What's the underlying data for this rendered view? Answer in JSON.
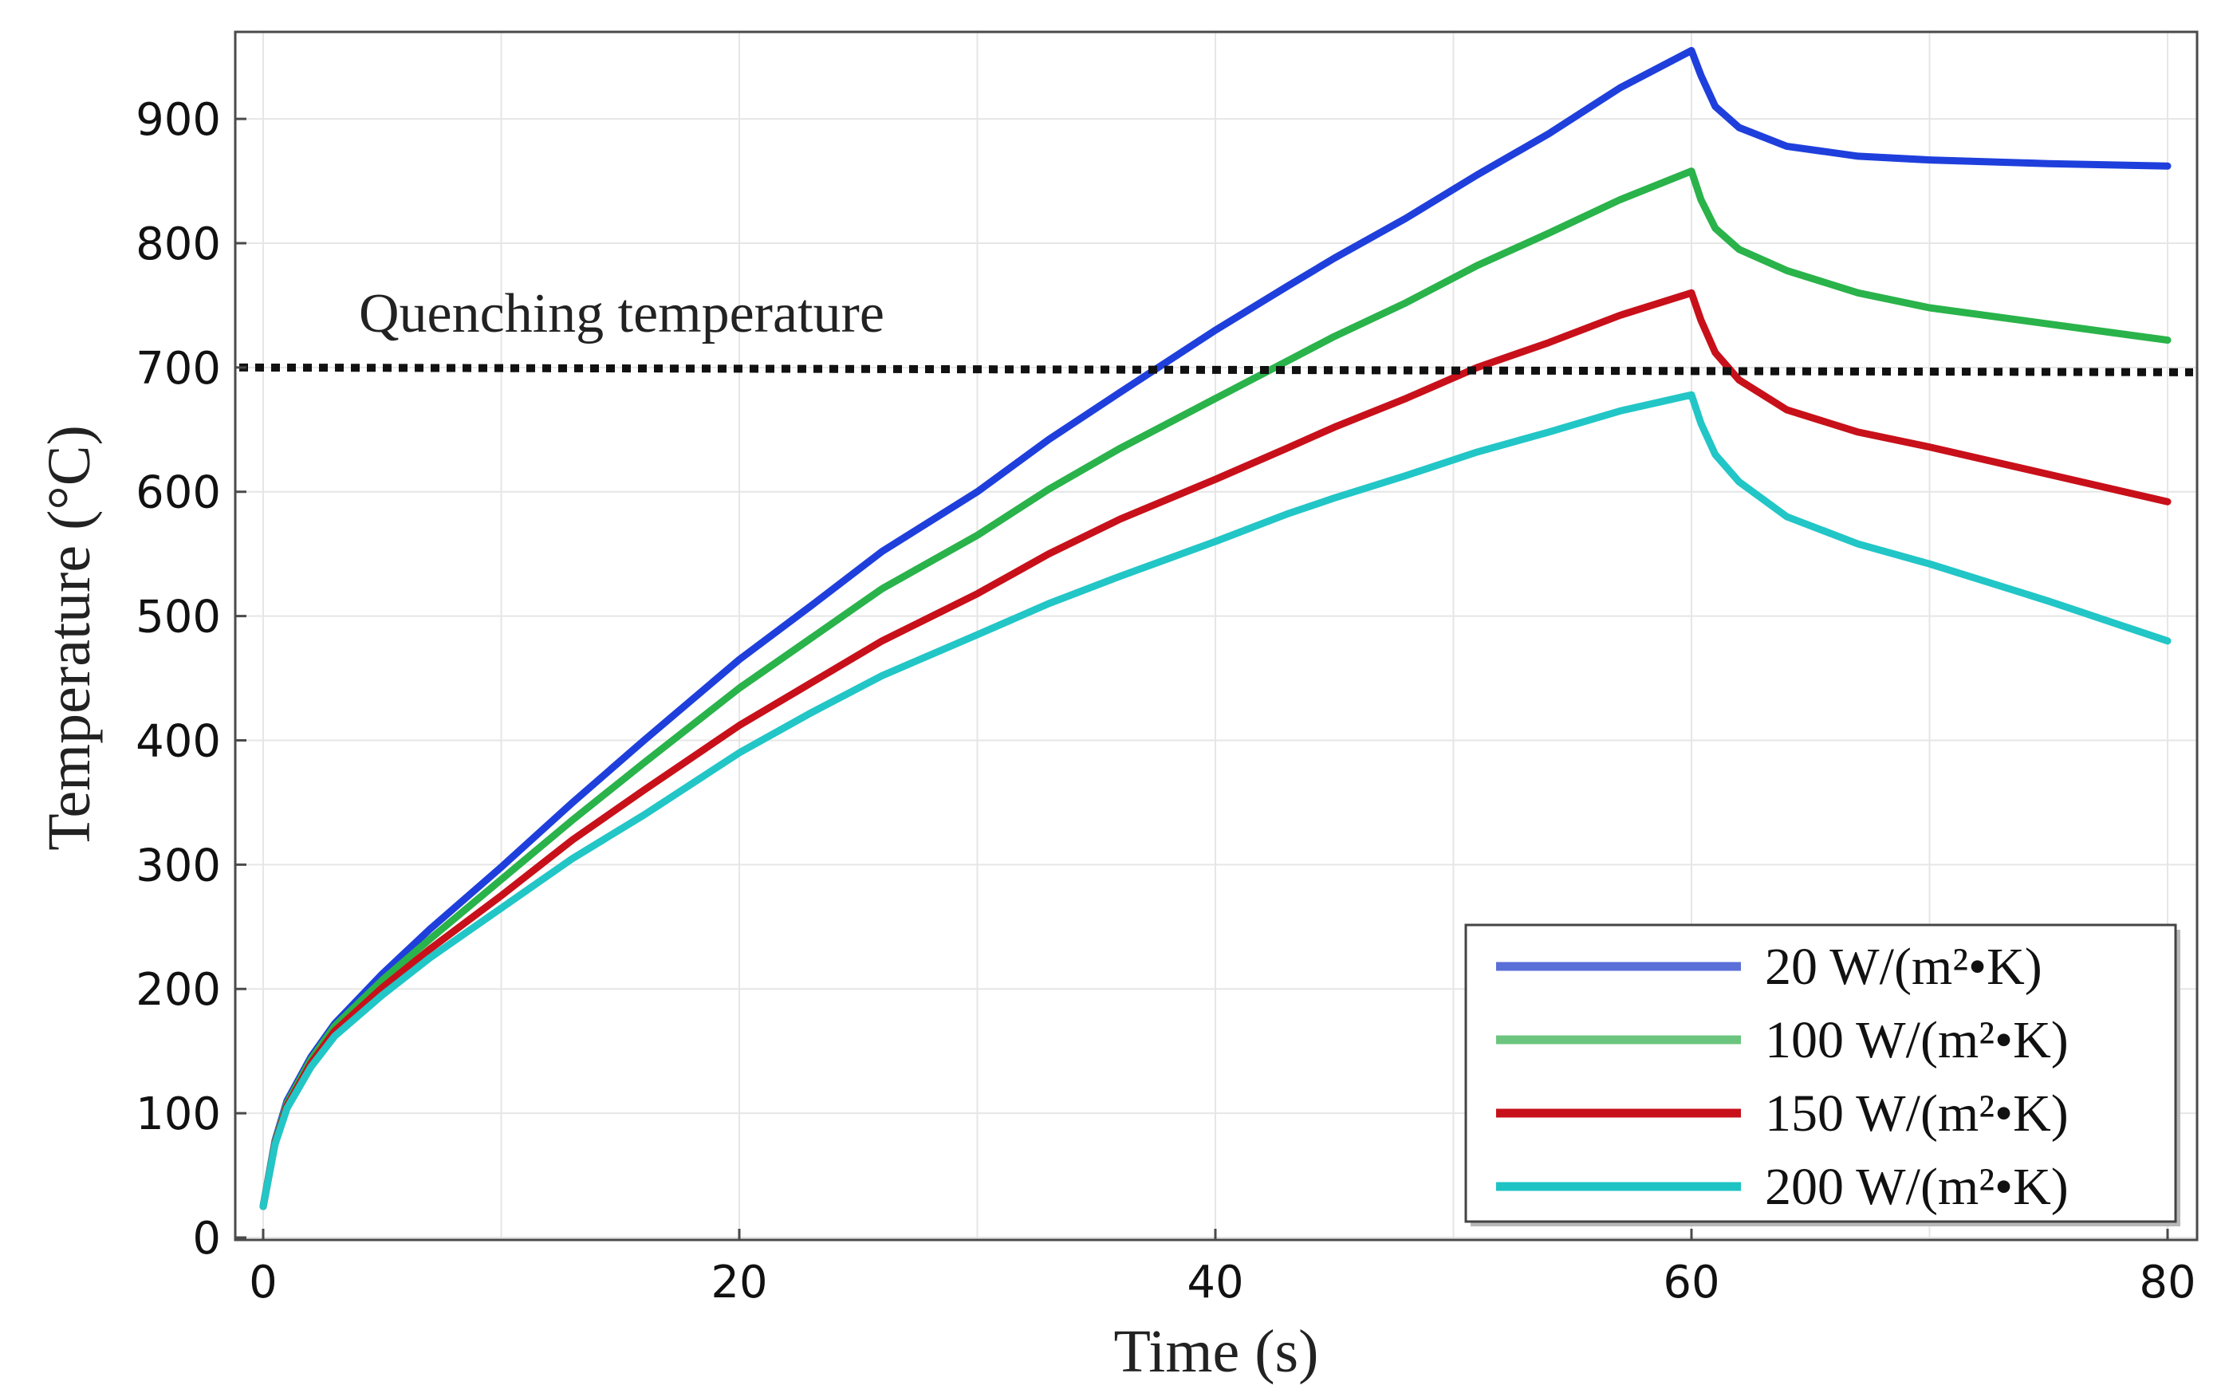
{
  "chart_data": {
    "type": "line",
    "title": "",
    "xlabel": "Time (s)",
    "ylabel": "Temperature (°C)",
    "xlim": [
      0,
      80
    ],
    "ylim": [
      0,
      970
    ],
    "xticks": [
      0,
      20,
      40,
      60,
      80
    ],
    "yticks": [
      0,
      100,
      200,
      300,
      400,
      500,
      600,
      700,
      800,
      900
    ],
    "grid": true,
    "legend_position": "bottom-right",
    "annotation": {
      "text": "Quenching temperature",
      "value": 700
    },
    "series": [
      {
        "name": "20 W/(m²•K)",
        "color": "#1f3fdc",
        "legend_color": "#5a6fd8",
        "x": [
          0,
          0.5,
          1,
          2,
          3,
          5,
          7,
          10,
          13,
          16,
          20,
          23,
          26,
          30,
          33,
          36,
          40,
          43,
          45,
          48,
          51,
          54,
          57,
          60,
          60.4,
          61,
          62,
          64,
          67,
          70,
          75,
          80
        ],
        "y": [
          25,
          78,
          110,
          145,
          172,
          212,
          248,
          298,
          350,
          400,
          465,
          508,
          552,
          600,
          642,
          680,
          730,
          765,
          788,
          820,
          855,
          888,
          925,
          955,
          935,
          910,
          893,
          878,
          870,
          867,
          864,
          862
        ]
      },
      {
        "name": "100 W/(m²•K)",
        "color": "#29b34a",
        "legend_color": "#6cc57e",
        "x": [
          0,
          0.5,
          1,
          2,
          3,
          5,
          7,
          10,
          13,
          16,
          20,
          23,
          26,
          30,
          33,
          36,
          40,
          43,
          45,
          48,
          51,
          54,
          57,
          60,
          60.4,
          61,
          62,
          64,
          67,
          70,
          75,
          80
        ],
        "y": [
          25,
          77,
          108,
          143,
          170,
          207,
          240,
          288,
          336,
          382,
          442,
          482,
          522,
          565,
          602,
          635,
          675,
          705,
          725,
          752,
          782,
          808,
          835,
          858,
          835,
          812,
          795,
          778,
          760,
          748,
          735,
          722
        ]
      },
      {
        "name": "150 W/(m²•K)",
        "color": "#c8101a",
        "legend_color": "#c8101a",
        "x": [
          0,
          0.5,
          1,
          2,
          3,
          5,
          7,
          10,
          13,
          16,
          20,
          23,
          26,
          30,
          33,
          36,
          40,
          43,
          45,
          48,
          51,
          54,
          57,
          60,
          60.4,
          61,
          62,
          64,
          67,
          70,
          75,
          80
        ],
        "y": [
          25,
          76,
          106,
          140,
          166,
          201,
          232,
          275,
          320,
          360,
          412,
          446,
          480,
          518,
          550,
          578,
          610,
          635,
          652,
          675,
          700,
          720,
          742,
          760,
          738,
          712,
          690,
          666,
          648,
          636,
          614,
          592
        ]
      },
      {
        "name": "200 W/(m²•K)",
        "color": "#22c6c6",
        "legend_color": "#1ec3c3",
        "x": [
          0,
          0.5,
          1,
          2,
          3,
          5,
          7,
          10,
          13,
          16,
          20,
          23,
          26,
          30,
          33,
          36,
          40,
          43,
          45,
          48,
          51,
          54,
          57,
          60,
          60.4,
          61,
          62,
          64,
          67,
          70,
          75,
          80
        ],
        "y": [
          25,
          75,
          104,
          137,
          162,
          195,
          225,
          265,
          305,
          340,
          390,
          422,
          452,
          485,
          510,
          532,
          560,
          582,
          595,
          613,
          632,
          648,
          665,
          678,
          655,
          630,
          608,
          580,
          558,
          542,
          512,
          480
        ]
      }
    ]
  }
}
